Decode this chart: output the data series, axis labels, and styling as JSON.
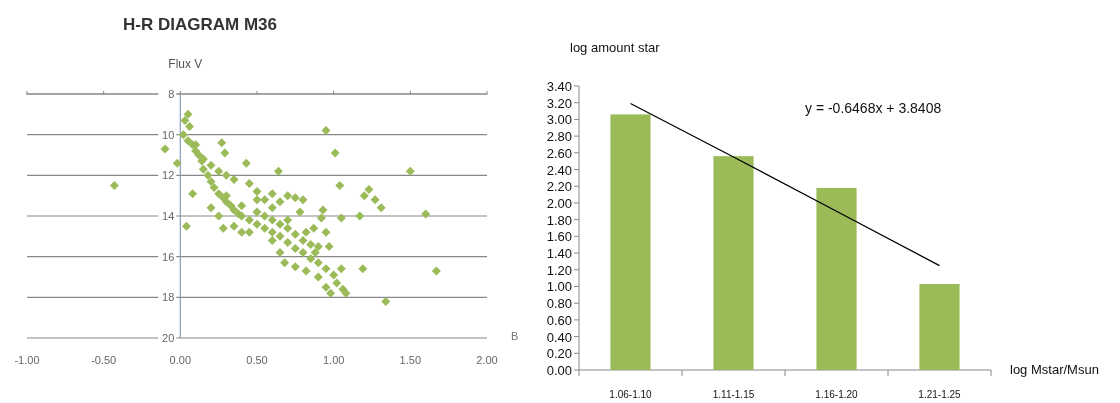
{
  "chart_data": [
    {
      "type": "scatter",
      "title": "H-R DIAGRAM M36",
      "ylabel": "Flux V",
      "xlabel": "B",
      "xlim": [
        -1,
        2
      ],
      "ylim": [
        20,
        8
      ],
      "xticks": [
        {
          "value": -1,
          "label": "-1.00"
        },
        {
          "value": -0.5,
          "label": "-0.50"
        },
        {
          "value": 0,
          "label": "0.00"
        },
        {
          "value": 0.5,
          "label": "0.50"
        },
        {
          "value": 1,
          "label": "1.00"
        },
        {
          "value": 1.5,
          "label": "1.50"
        },
        {
          "value": 2,
          "label": "2.00"
        }
      ],
      "yticks": [
        8,
        10,
        12,
        14,
        16,
        18,
        20
      ],
      "grid": "y",
      "marker": "diamond",
      "series": [
        {
          "color": "#9bbb59",
          "x": [
            -0.43,
            -0.1,
            -0.02,
            0.04,
            0.08,
            0.27,
            0.29,
            0.43,
            0.64,
            0.95,
            1.01,
            1.04,
            1.17,
            1.19,
            1.2,
            1.23,
            1.27,
            1.31,
            1.34,
            1.5,
            1.6,
            1.67,
            1.05,
            0.93,
            0.95,
            0.87,
            0.92,
            1.05,
            0.05,
            0.03,
            0.06,
            0.02,
            0.05,
            0.08,
            0.1,
            0.12,
            0.14,
            0.15,
            0.18,
            0.2,
            0.22,
            0.25,
            0.28,
            0.3,
            0.33,
            0.35,
            0.38,
            0.4,
            0.45,
            0.5,
            0.55,
            0.6,
            0.65,
            0.7,
            0.75,
            0.8,
            0.85,
            0.9,
            0.95,
            1.0,
            1.02,
            1.06,
            1.08,
            0.98,
            0.1,
            0.15,
            0.2,
            0.25,
            0.3,
            0.35,
            0.45,
            0.5,
            0.55,
            0.6,
            0.65,
            0.7,
            0.75,
            0.8,
            0.78,
            0.7,
            0.82,
            0.9,
            0.97,
            0.2,
            0.25,
            0.28,
            0.35,
            0.4,
            0.45,
            0.6,
            0.65,
            0.68,
            0.75,
            0.82,
            0.9,
            0.95,
            0.3,
            0.4,
            0.5,
            0.55,
            0.6,
            0.65,
            0.7,
            0.75,
            0.8,
            0.85,
            0.88,
            0.6,
            0.5
          ],
          "values": [
            12.5,
            10.7,
            11.4,
            14.5,
            12.9,
            10.4,
            10.9,
            11.4,
            11.8,
            9.8,
            10.9,
            12.5,
            14,
            16.6,
            13,
            12.7,
            13.2,
            13.6,
            18.2,
            11.8,
            13.9,
            16.7,
            14.1,
            13.7,
            14.8,
            14.6,
            14.1,
            16.6,
            9,
            9.3,
            9.6,
            10,
            10.3,
            10.5,
            10.8,
            11,
            11.3,
            11.7,
            12,
            12.3,
            12.6,
            12.9,
            13.1,
            13.3,
            13.5,
            13.7,
            13.9,
            14,
            14.2,
            14.4,
            14.6,
            14.8,
            15,
            15.3,
            15.6,
            15.8,
            16.1,
            16.3,
            16.6,
            16.9,
            17.3,
            17.6,
            17.8,
            17.8,
            10.5,
            11.2,
            11.5,
            11.8,
            12,
            12.2,
            12.4,
            12.8,
            13.2,
            12.9,
            13.3,
            13,
            13.1,
            13.2,
            13.8,
            14.2,
            14.8,
            15.5,
            15.5,
            13.6,
            14,
            14.6,
            14.5,
            14.8,
            14.8,
            15.2,
            15.8,
            16.3,
            16.5,
            16.7,
            17,
            17.5,
            13,
            13.5,
            13.8,
            14,
            14.2,
            14.4,
            14.6,
            14.9,
            15.2,
            15.4,
            15.8,
            13.6,
            13.2
          ]
        }
      ]
    },
    {
      "type": "bar",
      "ylabel": "log amount star",
      "xlabel": "log Mstar/Msun",
      "categories": [
        "1.06-1.10",
        "1.11-1.15",
        "1.16-1.20",
        "1.21-1.25"
      ],
      "ylim": [
        0,
        3.4
      ],
      "yticks": [
        {
          "value": 0,
          "label": "0.00"
        },
        {
          "value": 0.2,
          "label": "0.20"
        },
        {
          "value": 0.4,
          "label": "0.40"
        },
        {
          "value": 0.6,
          "label": "0.60"
        },
        {
          "value": 0.8,
          "label": "0.80"
        },
        {
          "value": 1,
          "label": "1.00"
        },
        {
          "value": 1.2,
          "label": "1.20"
        },
        {
          "value": 1.4,
          "label": "1.40"
        },
        {
          "value": 1.6,
          "label": "1.60"
        },
        {
          "value": 1.8,
          "label": "1.80"
        },
        {
          "value": 2,
          "label": "2.00"
        },
        {
          "value": 2.2,
          "label": "2.20"
        },
        {
          "value": 2.4,
          "label": "2.40"
        },
        {
          "value": 2.6,
          "label": "2.60"
        },
        {
          "value": 2.8,
          "label": "2.80"
        },
        {
          "value": 3,
          "label": "3.00"
        },
        {
          "value": 3.2,
          "label": "3.20"
        },
        {
          "value": 3.4,
          "label": "3.40"
        }
      ],
      "annotations": [
        "y = -0.6468x + 3.8408"
      ],
      "series": [
        {
          "type": "bar",
          "color": "#9bbb59",
          "values": [
            3.06,
            2.56,
            2.18,
            1.03
          ]
        },
        {
          "type": "line",
          "color": "#000000",
          "values": [
            3.19,
            2.55,
            1.9,
            1.25
          ]
        }
      ]
    }
  ]
}
